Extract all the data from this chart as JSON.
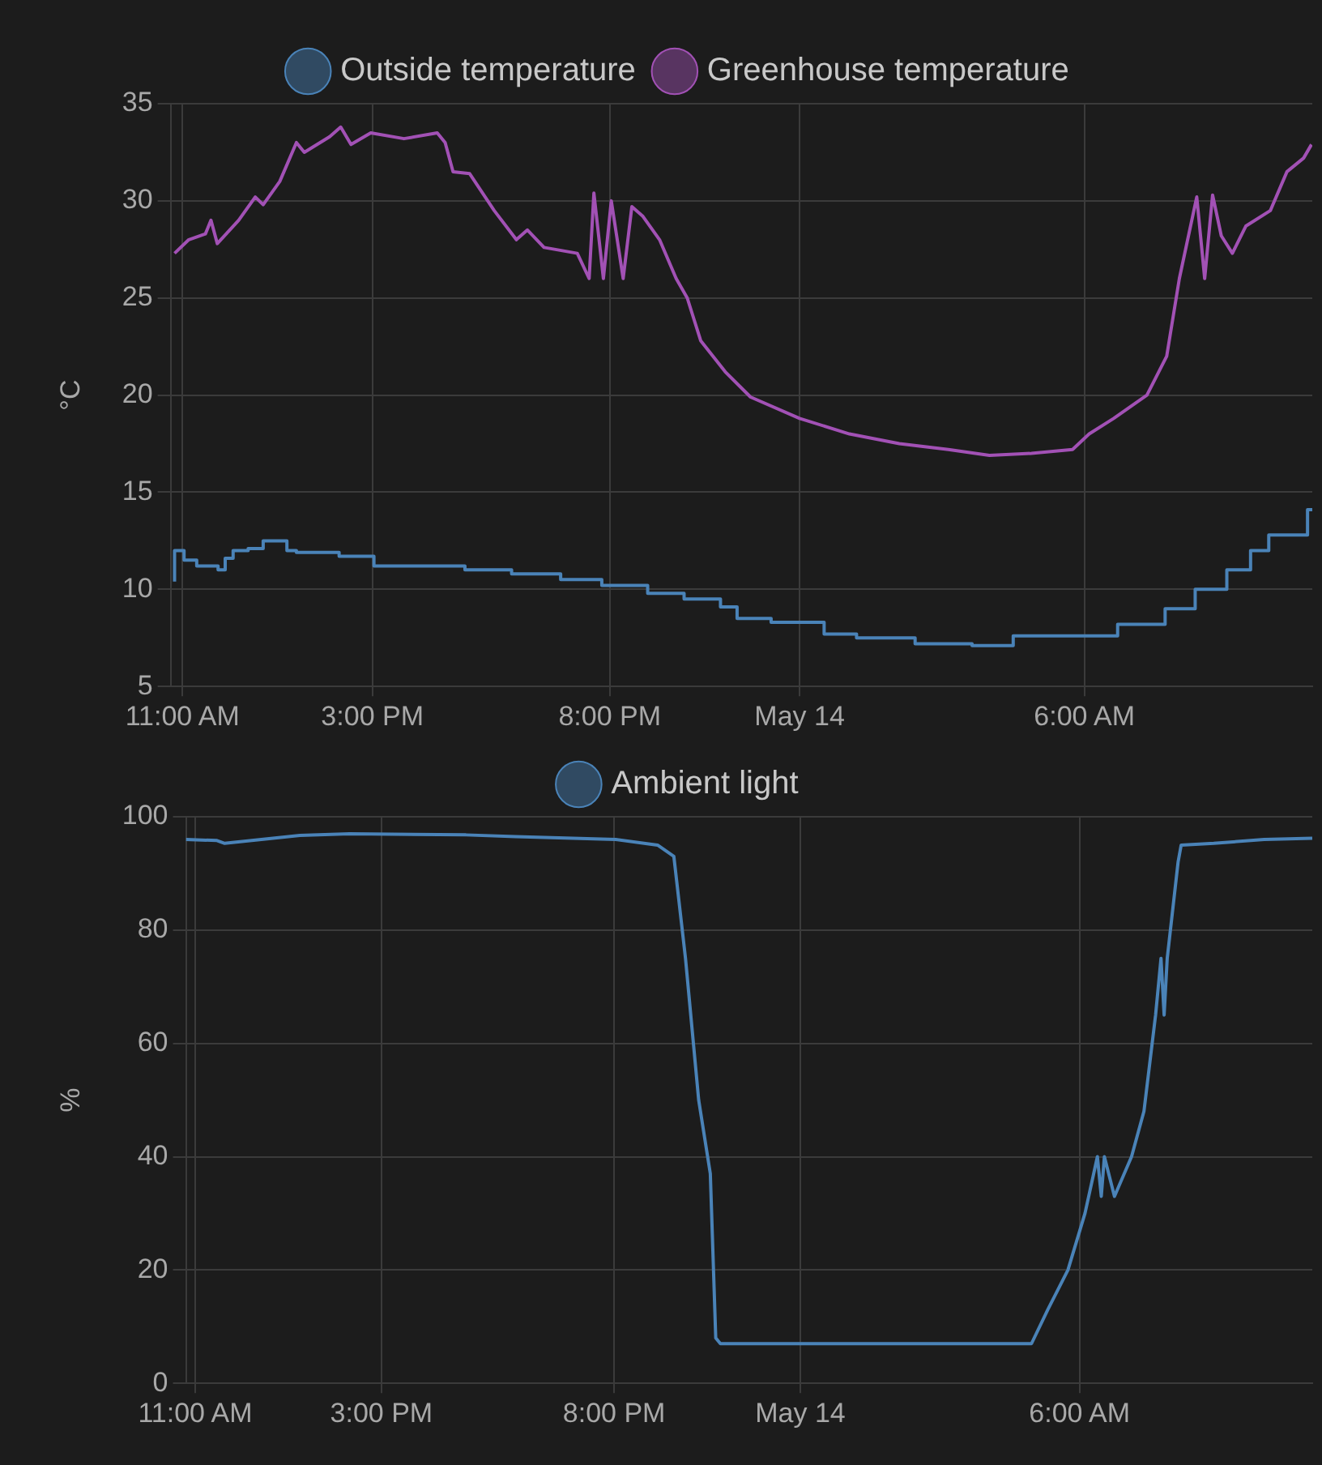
{
  "chart_data": [
    {
      "type": "line",
      "ylabel": "°C",
      "legend": "top",
      "grid": true,
      "marker": "none",
      "line_style": "solid",
      "xlim": [
        "--05-13T10:45",
        "--05-14T10:48"
      ],
      "xticks": [
        {
          "value": "--05-13T11:00",
          "label": "11:00 AM"
        },
        {
          "value": "--05-13T15:00",
          "label": "3:00 PM"
        },
        {
          "value": "--05-13T20:00",
          "label": "8:00 PM"
        },
        {
          "value": "--05-14T00:00",
          "label": "May 14"
        },
        {
          "value": "--05-14T06:00",
          "label": "6:00 AM"
        }
      ],
      "ylim": [
        5,
        35
      ],
      "yticks": [
        5,
        10,
        15,
        20,
        25,
        30,
        35
      ],
      "series": [
        {
          "name": "Outside temperature",
          "type": "step",
          "color": "#4a83b8",
          "x": [
            "--05-13T10:50",
            "--05-13T11:02",
            "--05-13T11:18",
            "--05-13T11:45",
            "--05-13T11:54",
            "--05-13T12:04",
            "--05-13T12:23",
            "--05-13T12:42",
            "--05-13T13:12",
            "--05-13T13:24",
            "--05-13T14:18",
            "--05-13T15:02",
            "--05-13T16:57",
            "--05-13T17:56",
            "--05-13T18:58",
            "--05-13T19:50",
            "--05-13T20:48",
            "--05-13T21:34",
            "--05-13T22:20",
            "--05-13T22:41",
            "--05-13T23:24",
            "--05-14T00:31",
            "--05-14T01:12",
            "--05-14T02:26",
            "--05-14T03:38",
            "--05-14T04:30",
            "--05-14T06:42",
            "--05-14T07:42",
            "--05-14T08:20",
            "--05-14T09:00",
            "--05-14T09:30",
            "--05-14T09:53",
            "--05-14T10:42",
            "--05-14T10:48"
          ],
          "values": [
            10.4,
            12,
            11.5,
            11.2,
            11.0,
            11.6,
            12,
            12.1,
            12.5,
            12.0,
            11.9,
            11.7,
            11.2,
            11.0,
            10.8,
            10.5,
            10.2,
            9.8,
            9.5,
            9.1,
            8.5,
            8.3,
            7.7,
            7.5,
            7.2,
            7.1,
            7.6,
            8.2,
            9.0,
            10.0,
            11.0,
            12.0,
            12.8,
            14.1
          ]
        },
        {
          "name": "Greenhouse temperature",
          "type": "line",
          "color": "#a251b5",
          "x": [
            "--05-13T10:50",
            "--05-13T11:08",
            "--05-13T11:29",
            "--05-13T11:36",
            "--05-13T11:44",
            "--05-13T12:11",
            "--05-13T12:32",
            "--05-13T12:42",
            "--05-13T13:03",
            "--05-13T13:24",
            "--05-13T13:34",
            "--05-13T14:06",
            "--05-13T14:20",
            "--05-13T14:33",
            "--05-13T14:58",
            "--05-13T15:40",
            "--05-13T16:22",
            "--05-13T16:32",
            "--05-13T16:42",
            "--05-13T17:03",
            "--05-13T17:34",
            "--05-13T18:02",
            "--05-13T18:16",
            "--05-13T18:37",
            "--05-13T19:19",
            "--05-13T19:34",
            "--05-13T19:40",
            "--05-13T19:52",
            "--05-13T20:02",
            "--05-13T20:17",
            "--05-13T20:28",
            "--05-13T20:42",
            "--05-13T21:03",
            "--05-13T21:24",
            "--05-13T21:38",
            "--05-13T21:55",
            "--05-13T22:26",
            "--05-13T22:58",
            "--05-14T00:00",
            "--05-14T01:03",
            "--05-14T02:06",
            "--05-14T03:08",
            "--05-14T04:00",
            "--05-14T04:53",
            "--05-14T05:45",
            "--05-14T06:06",
            "--05-14T06:37",
            "--05-14T07:19",
            "--05-14T07:44",
            "--05-14T08:00",
            "--05-14T08:22",
            "--05-14T08:32",
            "--05-14T08:42",
            "--05-14T08:53",
            "--05-14T09:07",
            "--05-14T09:24",
            "--05-14T09:55",
            "--05-14T10:16",
            "--05-14T10:37",
            "--05-14T10:47"
          ],
          "values": [
            27.3,
            28,
            28.3,
            29,
            27.8,
            29,
            30.2,
            29.8,
            31,
            33,
            32.5,
            33.3,
            33.8,
            32.9,
            33.5,
            33.2,
            33.5,
            33,
            31.5,
            31.4,
            29.5,
            28,
            28.5,
            27.6,
            27.3,
            26,
            30.4,
            26,
            30,
            26,
            29.7,
            29.2,
            28,
            26,
            25,
            22.8,
            21.2,
            19.9,
            18.8,
            18,
            17.5,
            17.2,
            16.9,
            17,
            17.2,
            18,
            18.8,
            20,
            22,
            26,
            30.2,
            26,
            30.3,
            28.2,
            27.3,
            28.7,
            29.5,
            31.5,
            32.2,
            32.9
          ]
        }
      ]
    },
    {
      "type": "line",
      "ylabel": "%",
      "legend": "top",
      "grid": true,
      "marker": "none",
      "line_style": "solid",
      "xlim": [
        "--05-13T10:48",
        "--05-14T11:00"
      ],
      "xticks": [
        {
          "value": "--05-13T11:00",
          "label": "11:00 AM"
        },
        {
          "value": "--05-13T15:00",
          "label": "3:00 PM"
        },
        {
          "value": "--05-13T20:00",
          "label": "8:00 PM"
        },
        {
          "value": "--05-14T00:00",
          "label": "May 14"
        },
        {
          "value": "--05-14T06:00",
          "label": "6:00 AM"
        }
      ],
      "ylim": [
        0,
        100
      ],
      "yticks": [
        0,
        20,
        40,
        60,
        80,
        100
      ],
      "series": [
        {
          "name": "Ambient light",
          "type": "line",
          "color": "#4a83b8",
          "x": [
            "--05-13T10:48",
            "--05-13T11:28",
            "--05-13T11:38",
            "--05-13T13:15",
            "--05-13T14:19",
            "--05-13T16:49",
            "--05-13T17:53",
            "--05-13T20:02",
            "--05-13T20:56",
            "--05-13T21:17",
            "--05-13T21:32",
            "--05-13T21:49",
            "--05-13T22:04",
            "--05-13T22:11",
            "--05-13T22:17",
            "--05-14T04:58",
            "--05-14T05:19",
            "--05-14T05:45",
            "--05-14T06:07",
            "--05-14T06:23",
            "--05-14T06:28",
            "--05-14T06:32",
            "--05-14T06:45",
            "--05-14T07:07",
            "--05-14T07:23",
            "--05-14T07:38",
            "--05-14T07:45",
            "--05-14T07:49",
            "--05-14T07:53",
            "--05-14T08:07",
            "--05-14T08:11",
            "--05-14T08:53",
            "--05-14T09:58",
            "--05-14T11:00"
          ],
          "values": [
            96,
            95.8,
            95.3,
            96.7,
            97,
            96.8,
            96.5,
            96,
            95,
            93,
            75,
            50,
            37,
            8,
            7,
            7,
            13,
            20,
            30,
            40,
            33,
            40,
            33,
            40,
            48,
            65,
            75,
            65,
            75,
            92,
            95,
            95.3,
            96,
            96.2
          ]
        }
      ]
    }
  ]
}
